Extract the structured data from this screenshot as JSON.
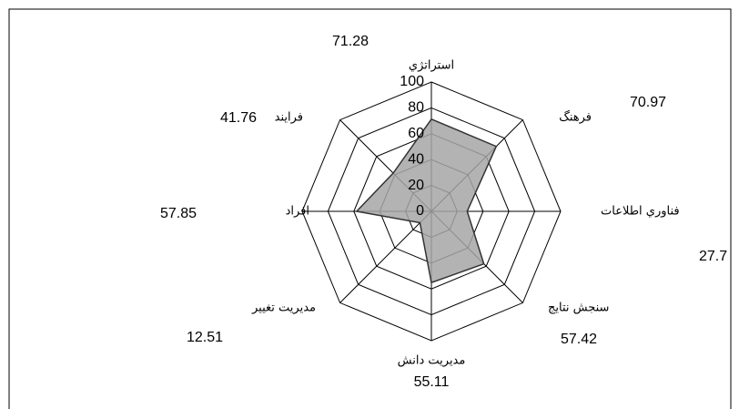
{
  "chart_data": {
    "type": "radar",
    "categories": [
      "استراتژي",
      "فرهنگ",
      "فناوري  اطلاعات",
      "سنجش نتايج",
      "مديريت دانش",
      "مديريت  تغيير",
      "افراد",
      "فرايند"
    ],
    "values": [
      71.28,
      70.97,
      27.7,
      57.42,
      55.11,
      12.51,
      57.85,
      41.76
    ],
    "rlim": [
      0,
      100
    ],
    "rticks": [
      0,
      20,
      40,
      60,
      80,
      100
    ],
    "color": "#a6a6a6",
    "line_color": "#333333"
  }
}
